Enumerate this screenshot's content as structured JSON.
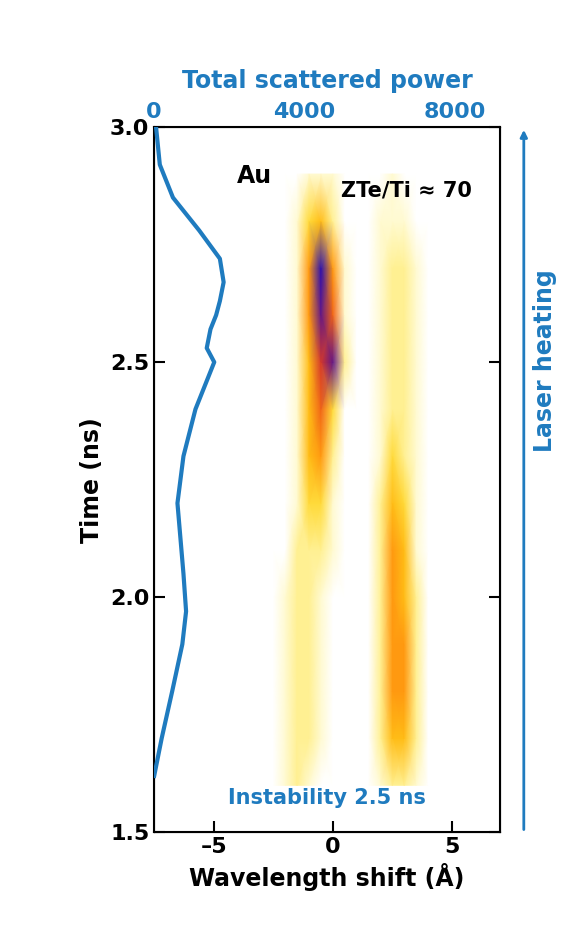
{
  "chart_data": {
    "type": "heatmap",
    "xlabel": "Wavelength shift (Å)",
    "ylabel": "Time (ns)",
    "x2label": "Total scattered power",
    "xlim": [
      -7.5,
      7.0
    ],
    "xticks": [
      {
        "value": -5,
        "label": "–5"
      },
      0,
      5
    ],
    "ylim": [
      1.5,
      3.0
    ],
    "yticks": [
      1.5,
      2.0,
      2.5,
      3.0
    ],
    "x2lim": [
      0,
      9200
    ],
    "x2ticks": [
      0,
      4000,
      8000
    ],
    "cells": {
      "x": [
        -3,
        -2.5,
        -2,
        -1.5,
        -1,
        -0.5,
        0,
        0.5,
        1,
        1.5,
        2,
        2.5,
        3,
        3.5,
        4,
        4.5
      ],
      "y": [
        1.6,
        1.7,
        1.8,
        1.9,
        2.0,
        2.1,
        2.2,
        2.3,
        2.4,
        2.5,
        2.6,
        2.7,
        2.8,
        2.9
      ],
      "values": [
        [
          0,
          0,
          1,
          2,
          1,
          0,
          0,
          0,
          0,
          0,
          1,
          2,
          2,
          1,
          0,
          0
        ],
        [
          0,
          0,
          1,
          2,
          2,
          1,
          0,
          0,
          0,
          0,
          2,
          4,
          4,
          2,
          0,
          0
        ],
        [
          0,
          0,
          1,
          2,
          2,
          1,
          0,
          0,
          0,
          0,
          2,
          5,
          5,
          2,
          0,
          0
        ],
        [
          0,
          0,
          1,
          2,
          2,
          1,
          0,
          0,
          0,
          0,
          2,
          5,
          5,
          2,
          0,
          0
        ],
        [
          0,
          0,
          1,
          2,
          2,
          1,
          0,
          0,
          0,
          0,
          2,
          5,
          4,
          2,
          0,
          0
        ],
        [
          0,
          0,
          0,
          2,
          2,
          2,
          1,
          0,
          0,
          0,
          2,
          5,
          4,
          1,
          0,
          0
        ],
        [
          0,
          0,
          0,
          1,
          3,
          3,
          1,
          0,
          0,
          0,
          2,
          4,
          3,
          1,
          0,
          0
        ],
        [
          0,
          0,
          0,
          1,
          4,
          5,
          2,
          0,
          0,
          0,
          1,
          3,
          2,
          1,
          0,
          0
        ],
        [
          0,
          0,
          0,
          1,
          4,
          6,
          3,
          0,
          0,
          0,
          1,
          2,
          2,
          1,
          0,
          0
        ],
        [
          0,
          0,
          0,
          1,
          4,
          7,
          9,
          2,
          0,
          0,
          1,
          2,
          2,
          1,
          0,
          0
        ],
        [
          0,
          0,
          0,
          1,
          5,
          9,
          6,
          1,
          0,
          0,
          1,
          2,
          2,
          1,
          0,
          0
        ],
        [
          0,
          0,
          0,
          1,
          5,
          10,
          5,
          1,
          0,
          0,
          1,
          2,
          2,
          1,
          0,
          0
        ],
        [
          0,
          0,
          0,
          1,
          3,
          4,
          2,
          0,
          0,
          0,
          1,
          1,
          1,
          0,
          0,
          0
        ],
        [
          0,
          0,
          0,
          0,
          1,
          1,
          1,
          0,
          0,
          0,
          0,
          1,
          0,
          0,
          0,
          0
        ]
      ]
    },
    "series": [
      {
        "type": "line",
        "axis": "x2",
        "color": "#1f7bbf",
        "x": [
          0,
          200,
          480,
          750,
          850,
          780,
          620,
          780,
          1100,
          1450,
          1600,
          1400,
          1500,
          1650,
          1750,
          1850,
          1750,
          1200,
          500,
          150,
          50
        ],
        "y": [
          1.62,
          1.7,
          1.8,
          1.9,
          1.97,
          2.05,
          2.2,
          2.3,
          2.4,
          2.47,
          2.5,
          2.53,
          2.57,
          2.6,
          2.63,
          2.67,
          2.72,
          2.78,
          2.85,
          2.92,
          3.0
        ]
      }
    ],
    "annotations": [
      "Au",
      "ZTe/Ti ≈ 70",
      "Instability 2.5 ns",
      "Laser heating"
    ]
  }
}
